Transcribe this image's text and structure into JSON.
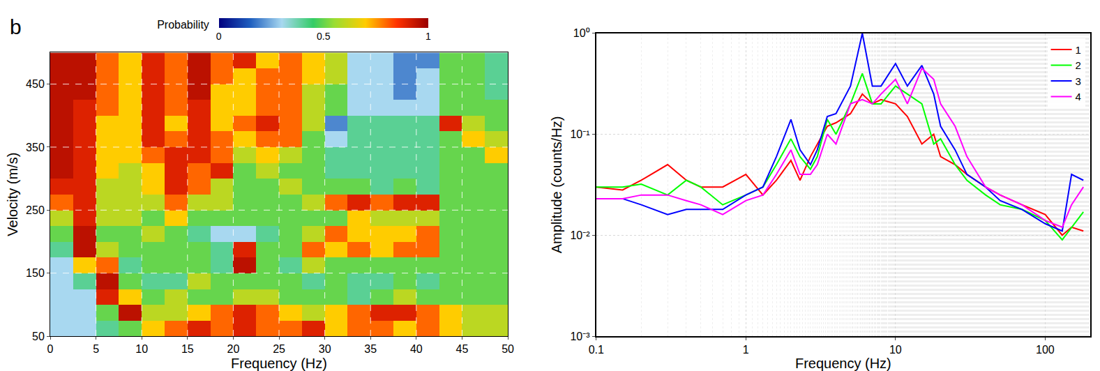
{
  "chart_data": [
    {
      "type": "heatmap",
      "title": "b",
      "x_label": "Frequency (Hz)",
      "y_label": "Velocity (m/s)",
      "x": [
        1.25,
        3.75,
        6.25,
        8.75,
        11.25,
        13.75,
        16.25,
        18.75,
        21.25,
        23.75,
        26.25,
        28.75,
        31.25,
        33.75,
        36.25,
        38.75,
        41.25,
        43.75,
        46.25,
        48.75
      ],
      "y": [
        62.5,
        87.5,
        112.5,
        137.5,
        162.5,
        187.5,
        212.5,
        237.5,
        262.5,
        287.5,
        312.5,
        337.5,
        362.5,
        387.5,
        412.5,
        437.5,
        462.5,
        487.5
      ],
      "z": [
        [
          0.3,
          0.3,
          0.4,
          0.5,
          0.7,
          0.8,
          0.9,
          0.8,
          0.9,
          0.8,
          0.8,
          0.9,
          0.7,
          0.8,
          0.8,
          0.7,
          0.8,
          0.7,
          0.6,
          0.6
        ],
        [
          0.3,
          0.3,
          0.5,
          0.95,
          0.6,
          0.6,
          0.7,
          0.8,
          0.9,
          0.8,
          0.7,
          0.6,
          0.7,
          0.8,
          0.9,
          0.9,
          0.8,
          0.7,
          0.6,
          0.6
        ],
        [
          0.3,
          0.3,
          0.9,
          0.7,
          0.5,
          0.6,
          0.5,
          0.5,
          0.6,
          0.6,
          0.5,
          0.5,
          0.5,
          0.4,
          0.5,
          0.6,
          0.5,
          0.5,
          0.5,
          0.5
        ],
        [
          0.3,
          0.4,
          0.95,
          0.5,
          0.4,
          0.4,
          0.6,
          0.5,
          0.5,
          0.5,
          0.5,
          0.4,
          0.5,
          0.4,
          0.4,
          0.5,
          0.4,
          0.5,
          0.5,
          0.5
        ],
        [
          0.3,
          0.7,
          0.8,
          0.4,
          0.5,
          0.5,
          0.5,
          0.4,
          0.95,
          0.5,
          0.4,
          0.6,
          0.5,
          0.5,
          0.5,
          0.5,
          0.5,
          0.5,
          0.5,
          0.5
        ],
        [
          0.4,
          0.95,
          0.6,
          0.5,
          0.5,
          0.5,
          0.5,
          0.4,
          0.9,
          0.5,
          0.5,
          0.8,
          0.7,
          0.8,
          0.7,
          0.8,
          0.8,
          0.5,
          0.5,
          0.5
        ],
        [
          0.5,
          0.95,
          0.5,
          0.5,
          0.6,
          0.5,
          0.4,
          0.3,
          0.3,
          0.4,
          0.5,
          0.6,
          0.8,
          0.7,
          0.7,
          0.7,
          0.8,
          0.5,
          0.5,
          0.5
        ],
        [
          0.6,
          0.9,
          0.6,
          0.6,
          0.5,
          0.7,
          0.5,
          0.5,
          0.5,
          0.5,
          0.5,
          0.5,
          0.5,
          0.7,
          0.6,
          0.6,
          0.6,
          0.5,
          0.5,
          0.5
        ],
        [
          0.8,
          0.9,
          0.6,
          0.6,
          0.6,
          0.8,
          0.6,
          0.6,
          0.5,
          0.5,
          0.5,
          0.6,
          0.8,
          0.9,
          0.8,
          0.9,
          0.9,
          0.5,
          0.5,
          0.5
        ],
        [
          0.9,
          0.9,
          0.6,
          0.6,
          0.7,
          0.9,
          0.8,
          0.6,
          0.5,
          0.5,
          0.6,
          0.5,
          0.5,
          0.5,
          0.4,
          0.5,
          0.4,
          0.5,
          0.5,
          0.5
        ],
        [
          0.95,
          0.9,
          0.7,
          0.6,
          0.7,
          0.9,
          0.8,
          0.9,
          0.5,
          0.6,
          0.5,
          0.5,
          0.4,
          0.4,
          0.4,
          0.4,
          0.4,
          0.5,
          0.5,
          0.5
        ],
        [
          0.95,
          0.9,
          0.7,
          0.7,
          0.8,
          0.9,
          0.9,
          0.8,
          0.6,
          0.7,
          0.6,
          0.5,
          0.4,
          0.4,
          0.4,
          0.4,
          0.4,
          0.5,
          0.5,
          0.7
        ],
        [
          0.95,
          0.9,
          0.7,
          0.7,
          0.9,
          0.8,
          0.9,
          0.8,
          0.7,
          0.8,
          0.8,
          0.5,
          0.3,
          0.4,
          0.4,
          0.4,
          0.4,
          0.5,
          0.7,
          0.6
        ],
        [
          0.95,
          0.9,
          0.7,
          0.7,
          0.9,
          0.7,
          0.9,
          0.7,
          0.8,
          0.9,
          0.8,
          0.6,
          0.2,
          0.4,
          0.4,
          0.4,
          0.4,
          0.9,
          0.6,
          0.5
        ],
        [
          0.95,
          0.9,
          0.8,
          0.7,
          0.9,
          0.8,
          0.9,
          0.7,
          0.7,
          0.8,
          0.8,
          0.6,
          0.5,
          0.3,
          0.3,
          0.3,
          0.3,
          0.5,
          0.5,
          0.5
        ],
        [
          0.95,
          0.95,
          0.8,
          0.7,
          0.9,
          0.8,
          0.95,
          0.7,
          0.7,
          0.8,
          0.8,
          0.6,
          0.5,
          0.3,
          0.3,
          0.2,
          0.3,
          0.5,
          0.5,
          0.4
        ],
        [
          0.95,
          0.95,
          0.8,
          0.7,
          0.9,
          0.8,
          0.95,
          0.8,
          0.7,
          0.8,
          0.8,
          0.7,
          0.6,
          0.3,
          0.3,
          0.2,
          0.3,
          0.5,
          0.5,
          0.4
        ],
        [
          0.95,
          0.95,
          0.8,
          0.7,
          0.9,
          0.8,
          0.95,
          0.8,
          0.9,
          0.7,
          0.8,
          0.7,
          0.6,
          0.3,
          0.3,
          0.2,
          0.2,
          0.5,
          0.5,
          0.4
        ]
      ],
      "xlim": [
        0,
        50
      ],
      "ylim": [
        50,
        500
      ],
      "xticks": [
        0,
        5,
        10,
        15,
        20,
        25,
        30,
        35,
        40,
        45,
        50
      ],
      "yticks": [
        50,
        150,
        250,
        350,
        450
      ],
      "colorbar": {
        "title": "Probability",
        "range": [
          0,
          1
        ],
        "ticks": [
          0,
          0.5,
          1
        ]
      },
      "grid": true
    },
    {
      "type": "line",
      "log": true,
      "x_label": "Frequency (Hz)",
      "y_label": "Amplitude (counts/Hz)",
      "x": [
        0.1,
        0.15,
        0.2,
        0.3,
        0.4,
        0.5,
        0.7,
        1,
        1.3,
        1.6,
        2,
        2.3,
        2.7,
        3,
        3.5,
        4,
        5,
        6,
        7,
        8,
        10,
        12,
        15,
        18,
        20,
        25,
        30,
        40,
        50,
        70,
        100,
        130,
        150,
        180
      ],
      "series": [
        {
          "name": "1",
          "color": "#ff0000",
          "values": [
            0.03,
            0.028,
            0.035,
            0.05,
            0.035,
            0.03,
            0.03,
            0.04,
            0.025,
            0.035,
            0.055,
            0.035,
            0.06,
            0.08,
            0.12,
            0.13,
            0.16,
            0.25,
            0.2,
            0.22,
            0.2,
            0.15,
            0.08,
            0.1,
            0.06,
            0.05,
            0.04,
            0.03,
            0.025,
            0.02,
            0.016,
            0.01,
            0.012,
            0.011
          ]
        },
        {
          "name": "2",
          "color": "#00ff00",
          "values": [
            0.03,
            0.03,
            0.032,
            0.025,
            0.035,
            0.03,
            0.02,
            0.025,
            0.03,
            0.05,
            0.09,
            0.06,
            0.045,
            0.06,
            0.14,
            0.1,
            0.2,
            0.4,
            0.2,
            0.2,
            0.3,
            0.25,
            0.2,
            0.08,
            0.09,
            0.05,
            0.035,
            0.025,
            0.02,
            0.018,
            0.014,
            0.009,
            0.012,
            0.017
          ]
        },
        {
          "name": "3",
          "color": "#0000ff",
          "values": [
            0.023,
            0.023,
            0.02,
            0.016,
            0.018,
            0.018,
            0.018,
            0.025,
            0.03,
            0.06,
            0.14,
            0.07,
            0.05,
            0.07,
            0.15,
            0.16,
            0.3,
            1.0,
            0.3,
            0.3,
            0.5,
            0.3,
            0.48,
            0.25,
            0.12,
            0.07,
            0.04,
            0.03,
            0.022,
            0.018,
            0.013,
            0.011,
            0.04,
            0.035
          ]
        },
        {
          "name": "4",
          "color": "#ff00ff",
          "values": [
            0.023,
            0.023,
            0.025,
            0.025,
            0.022,
            0.02,
            0.016,
            0.022,
            0.025,
            0.04,
            0.07,
            0.04,
            0.04,
            0.05,
            0.1,
            0.08,
            0.2,
            0.22,
            0.2,
            0.25,
            0.35,
            0.2,
            0.45,
            0.35,
            0.2,
            0.12,
            0.06,
            0.03,
            0.025,
            0.02,
            0.014,
            0.012,
            0.02,
            0.03
          ]
        }
      ],
      "xlim": [
        0.1,
        200
      ],
      "ylim": [
        0.001,
        1
      ],
      "xticks": [
        0.1,
        1,
        10,
        100
      ],
      "yticks": [
        {
          "value": 0.001,
          "label": "10⁻³"
        },
        {
          "value": 0.01,
          "label": "10⁻²"
        },
        {
          "value": 0.1,
          "label": "10⁻¹"
        },
        {
          "value": 1,
          "label": "10⁰"
        }
      ],
      "grid": true,
      "legend": "top right"
    }
  ]
}
